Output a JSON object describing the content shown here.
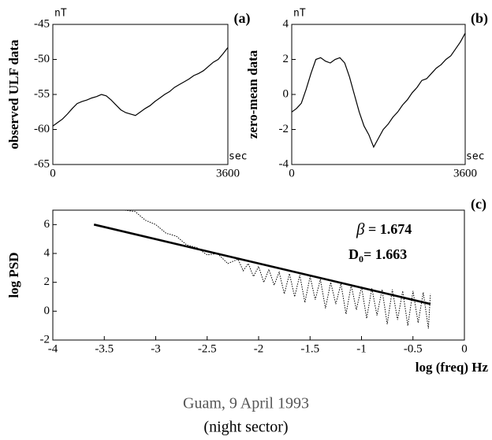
{
  "chart_data": [
    {
      "type": "line",
      "panel_label": "(a)",
      "ylabel": "observed ULF data",
      "y_unit": "nT",
      "x_unit": "sec",
      "xlim": [
        0,
        3600
      ],
      "xticks": [
        0,
        3600
      ],
      "ylim": [
        -65,
        -45
      ],
      "yticks": [
        -65,
        -60,
        -55,
        -50,
        -45
      ],
      "series": [
        {
          "color": "#000000",
          "style": "solid",
          "width": 1.2,
          "x": [
            0,
            100,
            200,
            300,
            400,
            500,
            600,
            700,
            800,
            900,
            1000,
            1100,
            1200,
            1300,
            1400,
            1500,
            1600,
            1700,
            1800,
            1900,
            2000,
            2100,
            2200,
            2300,
            2400,
            2500,
            2600,
            2700,
            2800,
            2900,
            3000,
            3100,
            3200,
            3300,
            3400,
            3500,
            3600
          ],
          "values": [
            -59.5,
            -59,
            -58.5,
            -57.8,
            -57,
            -56.3,
            -56,
            -55.8,
            -55.5,
            -55.3,
            -55,
            -55.2,
            -55.8,
            -56.5,
            -57.2,
            -57.6,
            -57.8,
            -58,
            -57.5,
            -57,
            -56.6,
            -56,
            -55.5,
            -55,
            -54.6,
            -54,
            -53.6,
            -53.2,
            -52.8,
            -52.3,
            -52,
            -51.6,
            -51,
            -50.4,
            -50,
            -49.2,
            -48.3
          ]
        }
      ]
    },
    {
      "type": "line",
      "panel_label": "(b)",
      "ylabel": "zero-mean data",
      "y_unit": "nT",
      "x_unit": "sec",
      "xlim": [
        0,
        3600
      ],
      "xticks": [
        0,
        3600
      ],
      "ylim": [
        -4,
        4
      ],
      "yticks": [
        -4,
        -2,
        0,
        2,
        4
      ],
      "series": [
        {
          "color": "#000000",
          "style": "solid",
          "width": 1.2,
          "x": [
            0,
            100,
            200,
            300,
            400,
            500,
            600,
            700,
            800,
            900,
            1000,
            1100,
            1200,
            1300,
            1400,
            1500,
            1600,
            1700,
            1800,
            1900,
            2000,
            2100,
            2200,
            2300,
            2400,
            2500,
            2600,
            2700,
            2800,
            2900,
            3000,
            3100,
            3200,
            3300,
            3400,
            3500,
            3600
          ],
          "values": [
            -1,
            -0.8,
            -0.5,
            0.3,
            1.2,
            2.0,
            2.1,
            1.9,
            1.8,
            2.0,
            2.1,
            1.8,
            1.0,
            0,
            -1.0,
            -1.8,
            -2.3,
            -3.0,
            -2.5,
            -2.0,
            -1.7,
            -1.3,
            -1.0,
            -0.6,
            -0.3,
            0.1,
            0.4,
            0.8,
            0.9,
            1.2,
            1.5,
            1.7,
            2.0,
            2.2,
            2.6,
            3.0,
            3.5
          ]
        }
      ]
    },
    {
      "type": "line",
      "panel_label": "(c)",
      "ylabel": "log  PSD",
      "xlabel": "log (freq) Hz",
      "xlim": [
        -4,
        0
      ],
      "xticks": [
        -4,
        -3.5,
        -3,
        -2.5,
        -2,
        -1.5,
        -1,
        -0.5,
        0
      ],
      "ylim": [
        -2,
        7
      ],
      "yticks": [
        -2,
        0,
        2,
        4,
        6
      ],
      "annotations": [
        {
          "parts": [
            "β",
            " = 1.674"
          ]
        },
        {
          "parts": [
            "D",
            "0",
            "= 1.663"
          ]
        }
      ],
      "series": [
        {
          "color": "#000000",
          "style": "dotted",
          "width": 1,
          "x": [
            -3.3,
            -3.2,
            -3.1,
            -3.0,
            -2.9,
            -2.8,
            -2.7,
            -2.6,
            -2.5,
            -2.4,
            -2.3,
            -2.2,
            -2.15,
            -2.1,
            -2.05,
            -2.0,
            -1.95,
            -1.9,
            -1.85,
            -1.8,
            -1.75,
            -1.7,
            -1.65,
            -1.6,
            -1.55,
            -1.5,
            -1.45,
            -1.4,
            -1.35,
            -1.3,
            -1.25,
            -1.2,
            -1.15,
            -1.1,
            -1.05,
            -1.0,
            -0.95,
            -0.9,
            -0.85,
            -0.8,
            -0.75,
            -0.7,
            -0.65,
            -0.6,
            -0.55,
            -0.5,
            -0.45,
            -0.4,
            -0.35,
            -0.33
          ],
          "values": [
            7,
            6.9,
            6.3,
            6.0,
            5.4,
            5.2,
            4.6,
            4.4,
            3.9,
            4.0,
            3.3,
            3.6,
            2.8,
            3.3,
            2.4,
            3.1,
            2.0,
            2.9,
            1.8,
            2.7,
            1.2,
            2.6,
            1.0,
            2.5,
            0.6,
            2.4,
            0.8,
            2.2,
            0.2,
            2.0,
            0.5,
            1.9,
            -0.2,
            1.8,
            0.1,
            1.7,
            -0.5,
            1.6,
            -0.3,
            1.5,
            -0.9,
            1.5,
            -0.6,
            1.4,
            -1.0,
            1.4,
            -0.8,
            1.3,
            -1.2,
            1.2
          ]
        },
        {
          "color": "#000000",
          "style": "solid",
          "width": 2.6,
          "x": [
            -3.6,
            -0.33
          ],
          "values": [
            6,
            0.5
          ]
        }
      ]
    }
  ],
  "caption": [
    "Guam, 9 April 1993",
    "(night sector)"
  ]
}
